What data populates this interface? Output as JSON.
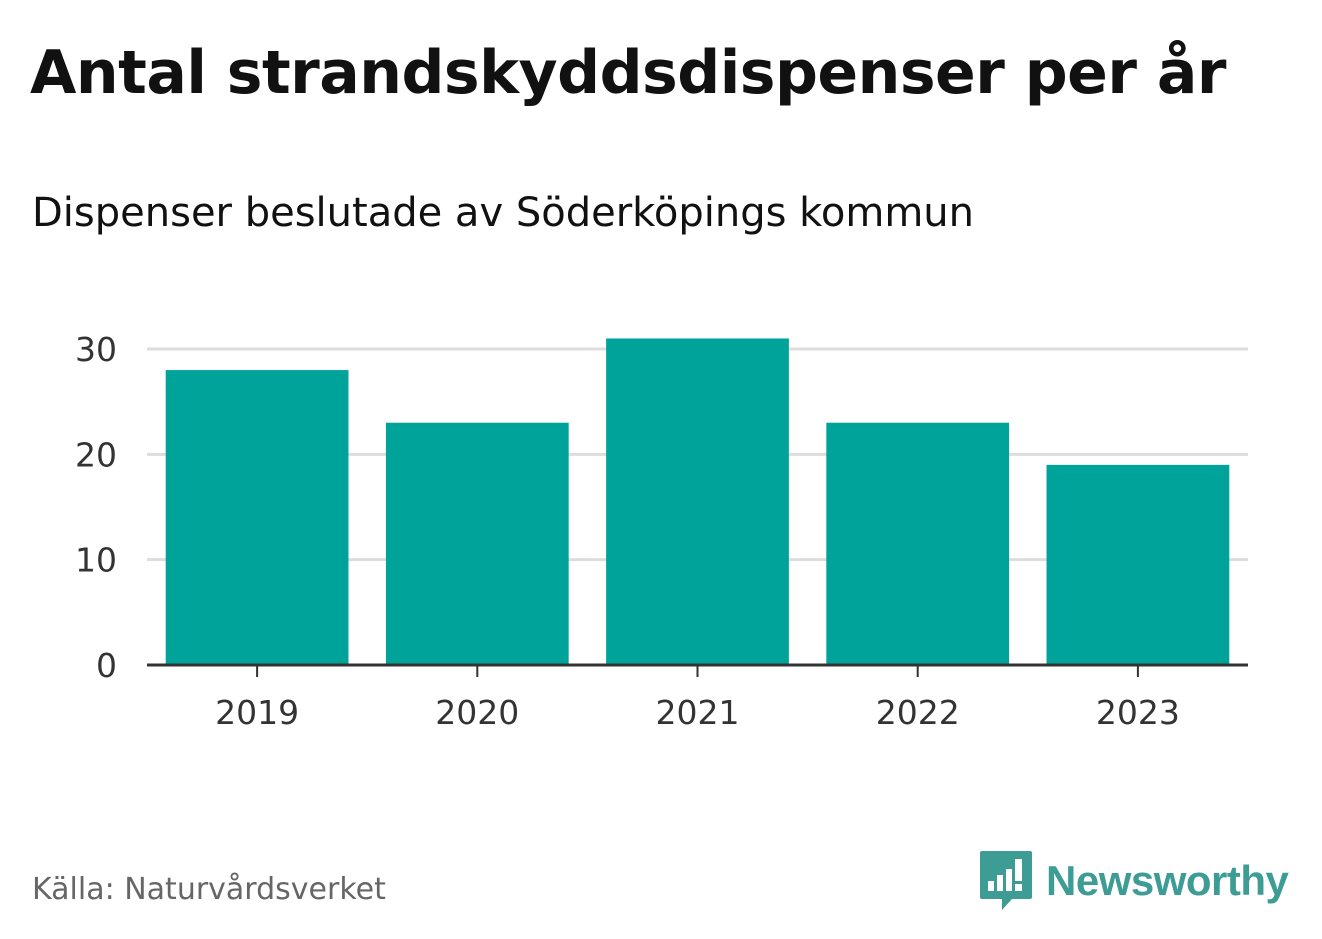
{
  "chart_data": {
    "type": "bar",
    "title": "Antal strandskyddsdispenser per år",
    "subtitle": "Dispenser beslutade av Söderköpings kommun",
    "categories": [
      "2019",
      "2020",
      "2021",
      "2022",
      "2023"
    ],
    "values": [
      28,
      23,
      31,
      23,
      19
    ],
    "xlabel": "",
    "ylabel": "",
    "ylim": [
      0,
      30
    ],
    "yticks": [
      0,
      10,
      20,
      30
    ],
    "grid": true,
    "legend": "none",
    "bar_color": "#00a39a",
    "grid_color": "#dddddd",
    "axis_color": "#333333"
  },
  "footer": {
    "source": "Källa: Naturvårdsverket",
    "brand": "Newsworthy",
    "brand_color": "#3d9c94",
    "brand_icon": "newsworthy-logo-icon"
  }
}
